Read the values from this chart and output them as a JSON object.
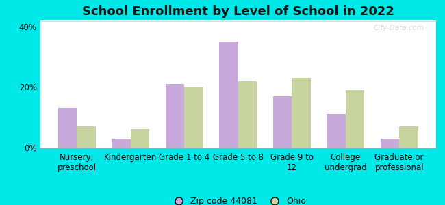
{
  "title": "School Enrollment by Level of School in 2022",
  "categories": [
    "Nursery,\npreschool",
    "Kindergarten",
    "Grade 1 to 4",
    "Grade 5 to 8",
    "Grade 9 to\n12",
    "College\nundergrad",
    "Graduate or\nprofessional"
  ],
  "zip_values": [
    13,
    3,
    21,
    35,
    17,
    11,
    3
  ],
  "ohio_values": [
    7,
    6,
    20,
    22,
    23,
    19,
    7
  ],
  "zip_color": "#c9a8dc",
  "ohio_color": "#c8d4a0",
  "zip_label": "Zip code 44081",
  "ohio_label": "Ohio",
  "background_outer": "#00e8e8",
  "yticks": [
    0,
    20,
    40
  ],
  "ylim": [
    0,
    42
  ],
  "bar_width": 0.35,
  "title_fontsize": 13,
  "axis_fontsize": 8.5,
  "legend_fontsize": 9,
  "watermark_text": "City-Data.com"
}
